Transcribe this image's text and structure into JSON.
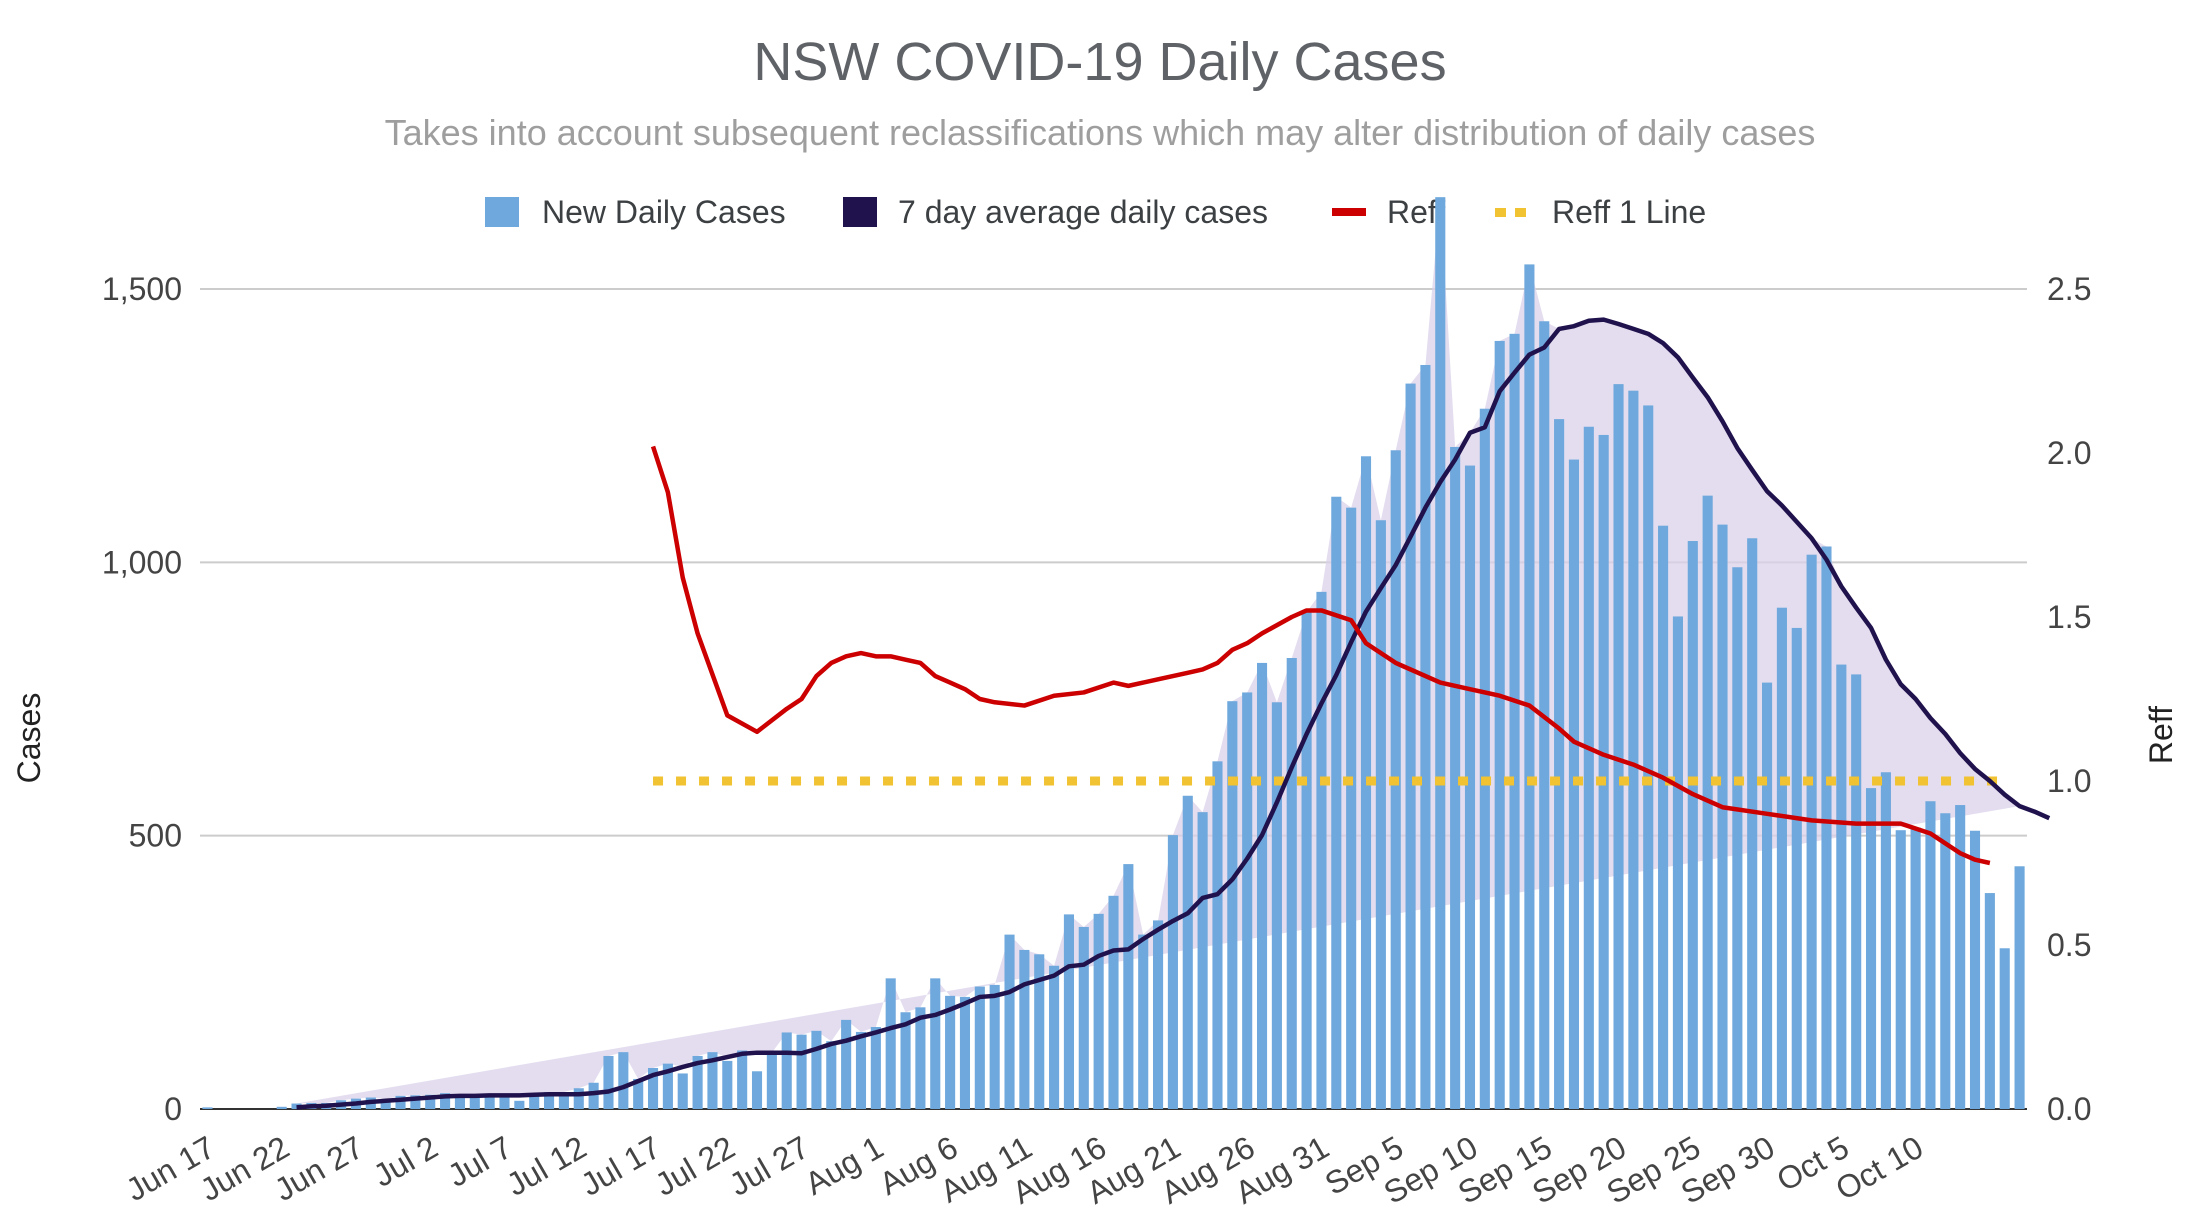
{
  "chart_data": {
    "type": "bar",
    "title": "NSW COVID-19 Daily Cases",
    "subtitle": "Takes into account subsequent reclassifications which may alter distribution of daily cases",
    "start_date": "Jun 17",
    "x_tick_labels": [
      "Jun 17",
      "Jun 22",
      "Jun 27",
      "Jul 2",
      "Jul 7",
      "Jul 12",
      "Jul 17",
      "Jul 22",
      "Jul 27",
      "Aug 1",
      "Aug 6",
      "Aug 11",
      "Aug 16",
      "Aug 21",
      "Aug 26",
      "Aug 31",
      "Sep 5",
      "Sep 10",
      "Sep 15",
      "Sep 20",
      "Sep 25",
      "Sep 30",
      "Oct 5",
      "Oct 10"
    ],
    "ylabel": "Cases",
    "y2label": "Reff",
    "ylim": [
      0,
      1500
    ],
    "y2lim": [
      0,
      2.5
    ],
    "y_tick_labels": [
      "0",
      "500",
      "1,000",
      "1,500"
    ],
    "y2_tick_labels": [
      "0.0",
      "0.5",
      "1.0",
      "1.5",
      "2.0",
      "2.5"
    ],
    "legend": [
      {
        "name": "New Daily Cases",
        "color": "#6fa8dc",
        "marker": "square"
      },
      {
        "name": "7 day average daily cases",
        "color": "#20124d",
        "marker": "square"
      },
      {
        "name": "Reff",
        "color": "#cc0000",
        "marker": "line"
      },
      {
        "name": "Reff 1 Line",
        "color": "#f1c232",
        "marker": "dots"
      }
    ],
    "series": [
      {
        "name": "New Daily Cases",
        "axis": "left",
        "values": [
          3,
          0,
          0,
          0,
          0,
          4,
          10,
          11,
          11,
          16,
          19,
          21,
          18,
          24,
          25,
          26,
          29,
          24,
          27,
          22,
          25,
          15,
          28,
          31,
          31,
          38,
          48,
          97,
          104,
          55,
          75,
          83,
          65,
          97,
          104,
          88,
          107,
          69,
          101,
          140,
          136,
          143,
          124,
          163,
          141,
          150,
          239,
          177,
          186,
          239,
          207,
          205,
          224,
          227,
          319,
          291,
          283,
          262,
          356,
          333,
          357,
          390,
          448,
          319,
          345,
          501,
          573,
          543,
          636,
          746,
          762,
          816,
          744,
          825,
          909,
          946,
          1120,
          1100,
          1194,
          1077,
          1205,
          1327,
          1361,
          1668,
          1211,
          1177,
          1281,
          1405,
          1418,
          1545,
          1441,
          1262,
          1188,
          1248,
          1233,
          1326,
          1314,
          1287,
          1067,
          901,
          1039,
          1122,
          1069,
          991,
          1044,
          780,
          917,
          880,
          1014,
          1029,
          813,
          795,
          587,
          616,
          510,
          515,
          563,
          541,
          556,
          509,
          395,
          294,
          444
        ]
      },
      {
        "name": "7 day average daily cases",
        "axis": "left",
        "start_index": 6,
        "values": [
          3,
          5,
          6,
          8,
          10,
          13,
          15,
          17,
          19,
          21,
          23,
          24,
          24,
          25,
          25,
          25,
          26,
          27,
          27,
          27,
          29,
          32,
          40,
          51,
          62,
          69,
          77,
          84,
          89,
          95,
          101,
          103,
          103,
          103,
          102,
          110,
          119,
          125,
          133,
          140,
          148,
          155,
          167,
          172,
          182,
          193,
          205,
          207,
          214,
          228,
          236,
          244,
          261,
          264,
          280,
          290,
          292,
          311,
          328,
          344,
          358,
          386,
          393,
          420,
          458,
          501,
          561,
          625,
          686,
          742,
          794,
          854,
          910,
          953,
          995,
          1047,
          1100,
          1147,
          1188,
          1237,
          1247,
          1313,
          1347,
          1380,
          1393,
          1427,
          1432,
          1442,
          1444,
          1436,
          1427,
          1418,
          1401,
          1375,
          1338,
          1302,
          1258,
          1209,
          1169,
          1130,
          1104,
          1074,
          1044,
          1005,
          956,
          917,
          880,
          822,
          777,
          750,
          715,
          686,
          651,
          622,
          600,
          575,
          554,
          544,
          532
        ]
      },
      {
        "name": "Reff",
        "axis": "right",
        "x_indices": [
          30,
          31,
          32,
          33,
          35,
          37,
          39,
          40,
          41,
          42,
          43,
          44,
          45,
          46,
          47,
          48,
          49,
          50,
          51,
          52,
          53,
          55,
          57,
          59,
          61,
          62,
          63,
          64,
          65,
          66,
          67,
          68,
          69,
          70,
          71,
          73,
          74,
          75,
          77,
          78,
          80,
          83,
          85,
          87,
          89,
          91,
          92,
          94,
          96,
          98,
          100,
          102,
          105,
          108,
          111,
          114,
          116,
          117,
          118,
          119,
          120
        ],
        "values": [
          2.02,
          1.88,
          1.62,
          1.45,
          1.2,
          1.15,
          1.22,
          1.25,
          1.32,
          1.36,
          1.38,
          1.39,
          1.38,
          1.38,
          1.37,
          1.36,
          1.32,
          1.3,
          1.28,
          1.25,
          1.24,
          1.23,
          1.26,
          1.27,
          1.3,
          1.29,
          1.3,
          1.31,
          1.32,
          1.33,
          1.34,
          1.36,
          1.4,
          1.42,
          1.45,
          1.5,
          1.52,
          1.52,
          1.49,
          1.42,
          1.36,
          1.3,
          1.28,
          1.26,
          1.23,
          1.16,
          1.12,
          1.08,
          1.05,
          1.01,
          0.96,
          0.92,
          0.9,
          0.88,
          0.87,
          0.87,
          0.84,
          0.81,
          0.78,
          0.76,
          0.75
        ]
      },
      {
        "name": "Reff 1 Line",
        "axis": "right",
        "x_range": [
          30,
          121
        ],
        "value": 1.0
      }
    ]
  }
}
